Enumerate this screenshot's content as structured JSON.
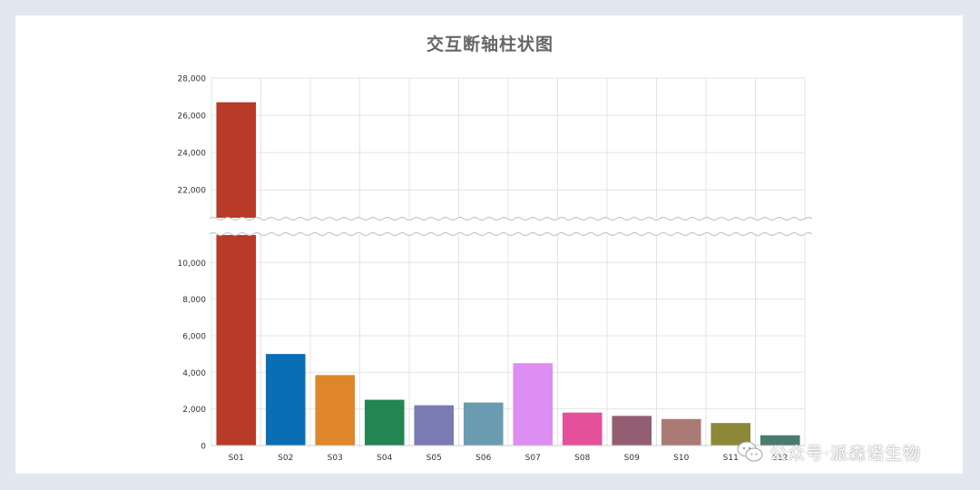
{
  "title": "交互断轴柱状图",
  "watermark": "公众号·派森诺生物",
  "chart_data": {
    "type": "bar",
    "title": "交互断轴柱状图",
    "xlabel": "",
    "ylabel": "",
    "categories": [
      "S01",
      "S02",
      "S03",
      "S04",
      "S05",
      "S06",
      "S07",
      "S08",
      "S09",
      "S10",
      "S11",
      "S12"
    ],
    "values": [
      26700,
      5000,
      3850,
      2500,
      2200,
      2350,
      4500,
      1800,
      1620,
      1450,
      1230,
      560
    ],
    "colors": [
      "#b83a28",
      "#0a6eb4",
      "#e0862a",
      "#228552",
      "#7a7bb2",
      "#6b9bb0",
      "#dd8ef2",
      "#e4509a",
      "#935e72",
      "#a97b74",
      "#8c8838",
      "#4b7a6e"
    ],
    "axis_break": [
      11500,
      20500
    ],
    "ylim": [
      0,
      28000
    ],
    "lower_ticks": [
      "0",
      "2,000",
      "4,000",
      "6,000",
      "8,000",
      "10,000"
    ],
    "upper_ticks": [
      "22,000",
      "24,000",
      "26,000",
      "28,000"
    ],
    "grid": true
  }
}
